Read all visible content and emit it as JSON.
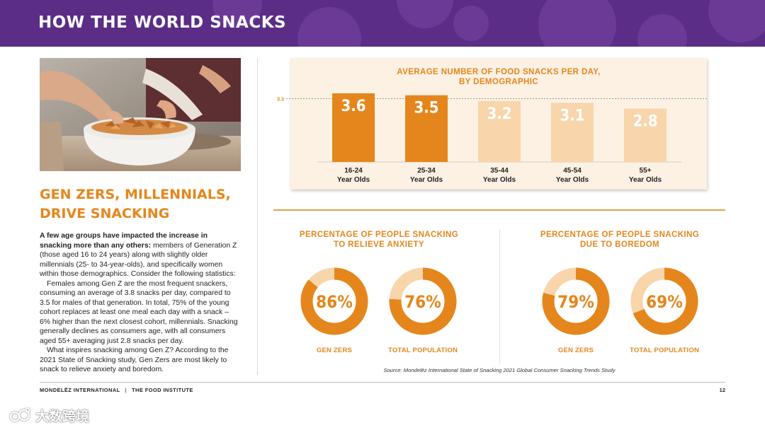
{
  "banner": {
    "title": "HOW THE WORLD SNACKS"
  },
  "left": {
    "heading_line1": "GEN ZERS, MILLENNIALS,",
    "heading_line2": "DRIVE SNACKING",
    "para1_bold": "A few age groups have impacted the increase in snacking more than any others:",
    "para1_rest": " members of Generation Z (those aged 16 to 24 years) along with slightly older millennials (25- to 34-year-olds), and specifically women within those demographics. Consider the following statistics:",
    "para2": "Females among Gen Z are the most frequent snackers, consuming an average of 3.8 snacks per day, compared to 3.5 for males of that generation. In total, 75% of the young cohort replaces at least one meal each day with a snack – 6% higher than the next closest cohort, millennials. Snacking generally declines as consumers age, with all consumers aged 55+ averaging just 2.8 snacks per day.",
    "para3": "What inspires snacking among Gen Z? According to the 2021 State of Snacking study, Gen Zers are most likely to snack to relieve anxiety and boredom."
  },
  "chart_data": [
    {
      "type": "bar",
      "title": "AVERAGE NUMBER OF FOOD SNACKS PER DAY, BY DEMOGRAPHIC",
      "title_line1": "AVERAGE NUMBER OF FOOD SNACKS PER DAY,",
      "title_line2": "BY DEMOGRAPHIC",
      "categories": [
        [
          "16-24",
          "Year Olds"
        ],
        [
          "25-34",
          "Year Olds"
        ],
        [
          "35-44",
          "Year Olds"
        ],
        [
          "45-54",
          "Year Olds"
        ],
        [
          "55+",
          "Year Olds"
        ]
      ],
      "values": [
        3.6,
        3.5,
        3.2,
        3.1,
        2.8
      ],
      "value_labels": [
        "3.6",
        "3.5",
        "3.2",
        "3.1",
        "2.8"
      ],
      "highlight": [
        true,
        true,
        false,
        false,
        false
      ],
      "reference_line": {
        "value": 3.3,
        "label": "3.3"
      },
      "ylim": [
        0,
        3.6
      ],
      "colors": {
        "highlight": "#e5861c",
        "normal": "#f8d5ab",
        "label_normal": "#ffffff"
      }
    },
    {
      "type": "pie",
      "variant": "donut",
      "title": "PERCENTAGE OF PEOPLE SNACKING TO RELIEVE ANXIETY",
      "title_line1": "PERCENTAGE OF PEOPLE SNACKING",
      "title_line2": "TO RELIEVE ANXIETY",
      "items": [
        {
          "label": "GEN ZERS",
          "value": 86,
          "display": "86%"
        },
        {
          "label": "TOTAL POPULATION",
          "value": 76,
          "display": "76%"
        }
      ]
    },
    {
      "type": "pie",
      "variant": "donut",
      "title": "PERCENTAGE OF PEOPLE SNACKING DUE TO BOREDOM",
      "title_line1": "PERCENTAGE OF PEOPLE SNACKING",
      "title_line2": "DUE TO BOREDOM",
      "items": [
        {
          "label": "GEN ZERS",
          "value": 79,
          "display": "79%"
        },
        {
          "label": "TOTAL POPULATION",
          "value": 69,
          "display": "69%"
        }
      ]
    }
  ],
  "donut_colors": {
    "filled": "#e5861c",
    "remaining": "#f8d5ab",
    "text": "#e5861c"
  },
  "source": "Source: Mondelēz International State of Snacking 2021 Global Consumer Snacking Trends Study",
  "footer": {
    "org1": "MONDELĒZ INTERNATIONAL",
    "separator": "|",
    "org2": "THE FOOD INSTITUTE",
    "page": "12"
  },
  "watermark": {
    "text": "大数跨境"
  },
  "icons": [
    "food-photo",
    "watermark-logo-icon"
  ],
  "brand_colors": {
    "banner": "#5b2d86",
    "accent": "#e5861c",
    "panel": "#fdf1e4"
  }
}
